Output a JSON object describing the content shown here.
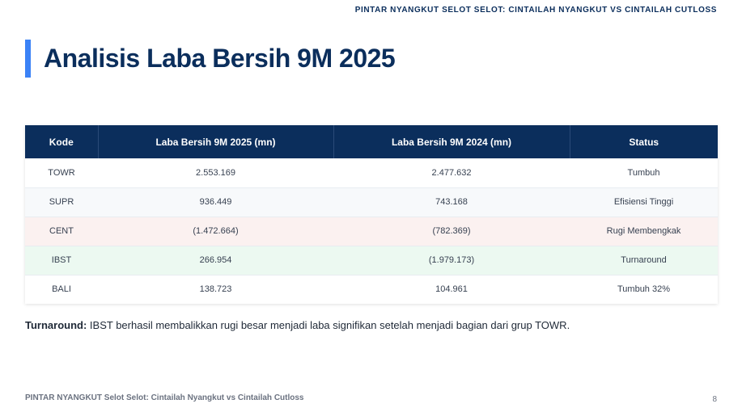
{
  "header": {
    "top_title": "PINTAR NYANGKUT SELOT SELOT: CINTAILAH NYANGKUT VS CINTAILAH CUTLOSS"
  },
  "page": {
    "title": "Analisis Laba Bersih 9M 2025",
    "accent_color": "#3b82f6",
    "title_color": "#0b2e5c"
  },
  "table": {
    "columns": [
      "Kode",
      "Laba Bersih 9M 2025 (mn)",
      "Laba Bersih 9M 2024 (mn)",
      "Status"
    ],
    "rows": [
      {
        "kode": "TOWR",
        "laba_2025": "2.553.169",
        "laba_2024": "2.477.632",
        "status": "Tumbuh",
        "highlight": "none"
      },
      {
        "kode": "SUPR",
        "laba_2025": "936.449",
        "laba_2024": "743.168",
        "status": "Efisiensi Tinggi",
        "highlight": "none"
      },
      {
        "kode": "CENT",
        "laba_2025": "(1.472.664)",
        "laba_2024": "(782.369)",
        "status": "Rugi Membengkak",
        "highlight": "red"
      },
      {
        "kode": "IBST",
        "laba_2025": "266.954",
        "laba_2024": "(1.979.173)",
        "status": "Turnaround",
        "highlight": "green"
      },
      {
        "kode": "BALI",
        "laba_2025": "138.723",
        "laba_2024": "104.961",
        "status": "Tumbuh 32%",
        "highlight": "none"
      }
    ],
    "header_color": "#0b2e5c"
  },
  "note": {
    "label": "Turnaround:",
    "text": " IBST berhasil membalikkan rugi besar menjadi laba signifikan setelah menjadi bagian dari grup TOWR."
  },
  "footer": {
    "left": "PINTAR NYANGKUT Selot Selot: Cintailah Nyangkut vs Cintailah Cutloss",
    "page_number": "8"
  }
}
